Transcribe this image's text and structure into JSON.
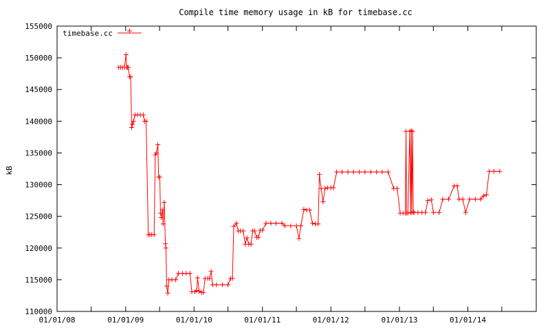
{
  "chart_data": {
    "type": "line",
    "title": "Compile time memory usage in kB for timebase.cc",
    "xlabel": "",
    "ylabel": "kB",
    "ylim": [
      110000,
      155000
    ],
    "y_ticks": [
      110000,
      115000,
      120000,
      125000,
      130000,
      135000,
      140000,
      145000,
      150000,
      155000
    ],
    "xlim": [
      "2008-01-01",
      "2015-01-01"
    ],
    "x_ticks": [
      "01/01/08",
      "01/01/09",
      "01/01/10",
      "01/01/11",
      "01/01/12",
      "01/01/13",
      "01/01/14"
    ],
    "x_tick_dates": [
      "2008-01-01",
      "2009-01-01",
      "2010-01-01",
      "2011-01-01",
      "2012-01-01",
      "2013-01-01",
      "2014-01-01"
    ],
    "grid": false,
    "legend_position": "top-left",
    "line_color": "#ff0000",
    "series": [
      {
        "name": "timebase.cc",
        "points": [
          [
            "2008-11-25",
            148500
          ],
          [
            "2008-12-05",
            148500
          ],
          [
            "2008-12-15",
            148500
          ],
          [
            "2008-12-25",
            148500
          ],
          [
            "2009-01-03",
            150500
          ],
          [
            "2009-01-06",
            148500
          ],
          [
            "2009-01-10",
            148500
          ],
          [
            "2009-01-15",
            148500
          ],
          [
            "2009-01-22",
            147000
          ],
          [
            "2009-01-28",
            147000
          ],
          [
            "2009-02-02",
            139000
          ],
          [
            "2009-02-06",
            139500
          ],
          [
            "2009-02-12",
            140000
          ],
          [
            "2009-02-20",
            141000
          ],
          [
            "2009-03-05",
            141000
          ],
          [
            "2009-03-20",
            141000
          ],
          [
            "2009-04-05",
            141000
          ],
          [
            "2009-04-12",
            140000
          ],
          [
            "2009-04-20",
            140000
          ],
          [
            "2009-05-02",
            122100
          ],
          [
            "2009-05-10",
            122100
          ],
          [
            "2009-05-20",
            122100
          ],
          [
            "2009-06-02",
            122100
          ],
          [
            "2009-06-08",
            134700
          ],
          [
            "2009-06-14",
            135000
          ],
          [
            "2009-06-22",
            136300
          ],
          [
            "2009-06-26",
            131200
          ],
          [
            "2009-07-02",
            131200
          ],
          [
            "2009-07-06",
            125500
          ],
          [
            "2009-07-10",
            124800
          ],
          [
            "2009-07-16",
            126000
          ],
          [
            "2009-07-20",
            123800
          ],
          [
            "2009-07-26",
            127200
          ],
          [
            "2009-08-01",
            120700
          ],
          [
            "2009-08-04",
            120000
          ],
          [
            "2009-08-08",
            114000
          ],
          [
            "2009-08-14",
            112900
          ],
          [
            "2009-08-20",
            115000
          ],
          [
            "2009-09-05",
            115000
          ],
          [
            "2009-09-25",
            115000
          ],
          [
            "2009-10-10",
            116000
          ],
          [
            "2009-11-01",
            116000
          ],
          [
            "2009-11-20",
            116000
          ],
          [
            "2009-12-10",
            116000
          ],
          [
            "2009-12-20",
            113100
          ],
          [
            "2010-01-05",
            113100
          ],
          [
            "2010-01-15",
            113300
          ],
          [
            "2010-01-20",
            115300
          ],
          [
            "2010-01-28",
            113200
          ],
          [
            "2010-02-10",
            113000
          ],
          [
            "2010-02-20",
            113000
          ],
          [
            "2010-03-01",
            115200
          ],
          [
            "2010-03-15",
            115200
          ],
          [
            "2010-03-25",
            115200
          ],
          [
            "2010-04-02",
            116300
          ],
          [
            "2010-04-10",
            114200
          ],
          [
            "2010-05-01",
            114200
          ],
          [
            "2010-06-01",
            114200
          ],
          [
            "2010-07-01",
            114200
          ],
          [
            "2010-07-15",
            115200
          ],
          [
            "2010-07-25",
            115200
          ],
          [
            "2010-08-01",
            123400
          ],
          [
            "2010-08-15",
            123900
          ],
          [
            "2010-08-25",
            122700
          ],
          [
            "2010-09-05",
            122700
          ],
          [
            "2010-09-20",
            122700
          ],
          [
            "2010-10-01",
            120600
          ],
          [
            "2010-10-10",
            121600
          ],
          [
            "2010-10-20",
            120600
          ],
          [
            "2010-11-01",
            120600
          ],
          [
            "2010-11-10",
            122700
          ],
          [
            "2010-11-20",
            122700
          ],
          [
            "2010-12-01",
            121700
          ],
          [
            "2010-12-10",
            121700
          ],
          [
            "2010-12-20",
            122800
          ],
          [
            "2011-01-01",
            122800
          ],
          [
            "2011-01-20",
            123900
          ],
          [
            "2011-02-15",
            123900
          ],
          [
            "2011-03-15",
            123900
          ],
          [
            "2011-04-15",
            123900
          ],
          [
            "2011-05-01",
            123500
          ],
          [
            "2011-06-01",
            123500
          ],
          [
            "2011-07-01",
            123500
          ],
          [
            "2011-07-15",
            121500
          ],
          [
            "2011-07-25",
            123500
          ],
          [
            "2011-08-10",
            126100
          ],
          [
            "2011-08-25",
            126000
          ],
          [
            "2011-09-10",
            126000
          ],
          [
            "2011-09-25",
            123900
          ],
          [
            "2011-10-10",
            123800
          ],
          [
            "2011-10-25",
            123800
          ],
          [
            "2011-11-01",
            131600
          ],
          [
            "2011-11-10",
            129400
          ],
          [
            "2011-11-20",
            127300
          ],
          [
            "2011-12-01",
            129400
          ],
          [
            "2011-12-15",
            129500
          ],
          [
            "2012-01-01",
            129500
          ],
          [
            "2012-01-15",
            129500
          ],
          [
            "2012-02-01",
            132000
          ],
          [
            "2012-03-01",
            132000
          ],
          [
            "2012-04-01",
            132000
          ],
          [
            "2012-05-01",
            132000
          ],
          [
            "2012-06-01",
            132000
          ],
          [
            "2012-07-01",
            132000
          ],
          [
            "2012-08-01",
            132000
          ],
          [
            "2012-09-01",
            132000
          ],
          [
            "2012-10-01",
            132000
          ],
          [
            "2012-11-01",
            132000
          ],
          [
            "2012-12-01",
            129400
          ],
          [
            "2012-12-20",
            129400
          ],
          [
            "2013-01-05",
            125500
          ],
          [
            "2013-01-20",
            125500
          ],
          [
            "2013-02-01",
            125500
          ],
          [
            "2013-02-05",
            138400
          ],
          [
            "2013-02-08",
            125500
          ],
          [
            "2013-02-15",
            125500
          ],
          [
            "2013-02-25",
            138400
          ],
          [
            "2013-03-02",
            125600
          ],
          [
            "2013-03-05",
            138500
          ],
          [
            "2013-03-08",
            125600
          ],
          [
            "2013-03-12",
            138400
          ],
          [
            "2013-03-16",
            125700
          ],
          [
            "2013-03-20",
            125600
          ],
          [
            "2013-04-10",
            125600
          ],
          [
            "2013-05-01",
            125600
          ],
          [
            "2013-05-20",
            125600
          ],
          [
            "2013-06-01",
            127500
          ],
          [
            "2013-06-20",
            127600
          ],
          [
            "2013-07-01",
            125600
          ],
          [
            "2013-08-01",
            125600
          ],
          [
            "2013-08-20",
            127700
          ],
          [
            "2013-09-20",
            127700
          ],
          [
            "2013-10-20",
            129800
          ],
          [
            "2013-11-05",
            129800
          ],
          [
            "2013-11-15",
            127700
          ],
          [
            "2013-12-05",
            127700
          ],
          [
            "2013-12-20",
            125600
          ],
          [
            "2014-01-10",
            127700
          ],
          [
            "2014-02-10",
            127700
          ],
          [
            "2014-03-10",
            127700
          ],
          [
            "2014-03-25",
            128200
          ],
          [
            "2014-04-10",
            128400
          ],
          [
            "2014-04-25",
            132100
          ],
          [
            "2014-05-20",
            132100
          ],
          [
            "2014-06-20",
            132100
          ]
        ]
      }
    ]
  }
}
